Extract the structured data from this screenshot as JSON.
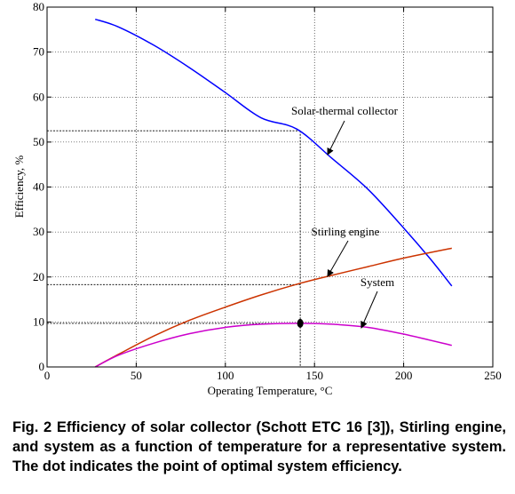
{
  "chart_data": {
    "type": "line",
    "xlabel": "Operating Temperature, °C",
    "ylabel": "Efficiency, %",
    "xlim": [
      0,
      250
    ],
    "ylim": [
      0,
      80
    ],
    "x_ticks": [
      "0",
      "50",
      "100",
      "150",
      "200",
      "250"
    ],
    "y_ticks": [
      "0",
      "10",
      "20",
      "30",
      "40",
      "50",
      "60",
      "70",
      "80"
    ],
    "grid": true,
    "series": [
      {
        "key": "collector",
        "color": "#0000ff",
        "x": [
          27,
          40,
          60,
          80,
          100,
          120,
          140,
          160,
          180,
          200,
          215,
          227
        ],
        "y": [
          77.3,
          75.6,
          71.5,
          66.5,
          61.0,
          55.4,
          52.9,
          46.3,
          39.5,
          30.9,
          24.0,
          18.0
        ]
      },
      {
        "key": "stirling",
        "color": "#cc3300",
        "x": [
          27,
          40,
          60,
          80,
          100,
          120,
          142,
          160,
          180,
          200,
          227
        ],
        "y": [
          0,
          2.8,
          6.9,
          10.4,
          13.3,
          16.0,
          18.6,
          20.4,
          22.3,
          24.2,
          26.4
        ]
      },
      {
        "key": "system",
        "color": "#cc00cc",
        "x": [
          27,
          40,
          60,
          80,
          100,
          120,
          142,
          160,
          180,
          200,
          227
        ],
        "y": [
          0,
          2.6,
          5.3,
          7.4,
          8.8,
          9.5,
          9.7,
          9.5,
          8.8,
          7.3,
          4.8
        ]
      }
    ],
    "optimal_point": {
      "x": 142,
      "y": 9.7
    },
    "reference_lines": [
      {
        "x": 142,
        "y": 52.5
      },
      {
        "x": 142,
        "y": 18.3
      },
      {
        "x": 142,
        "y": 9.7
      }
    ],
    "annotations": [
      {
        "text": "Solar-thermal collector",
        "series": "collector"
      },
      {
        "text": "Stirling engine",
        "series": "stirling"
      },
      {
        "text": "System",
        "series": "system"
      }
    ]
  },
  "caption": "Fig. 2   Efficiency of solar collector (Schott ETC 16 [3]), Stirling engine, and system as a function of temperature for a representative system. The dot indicates the point of optimal system efficiency."
}
